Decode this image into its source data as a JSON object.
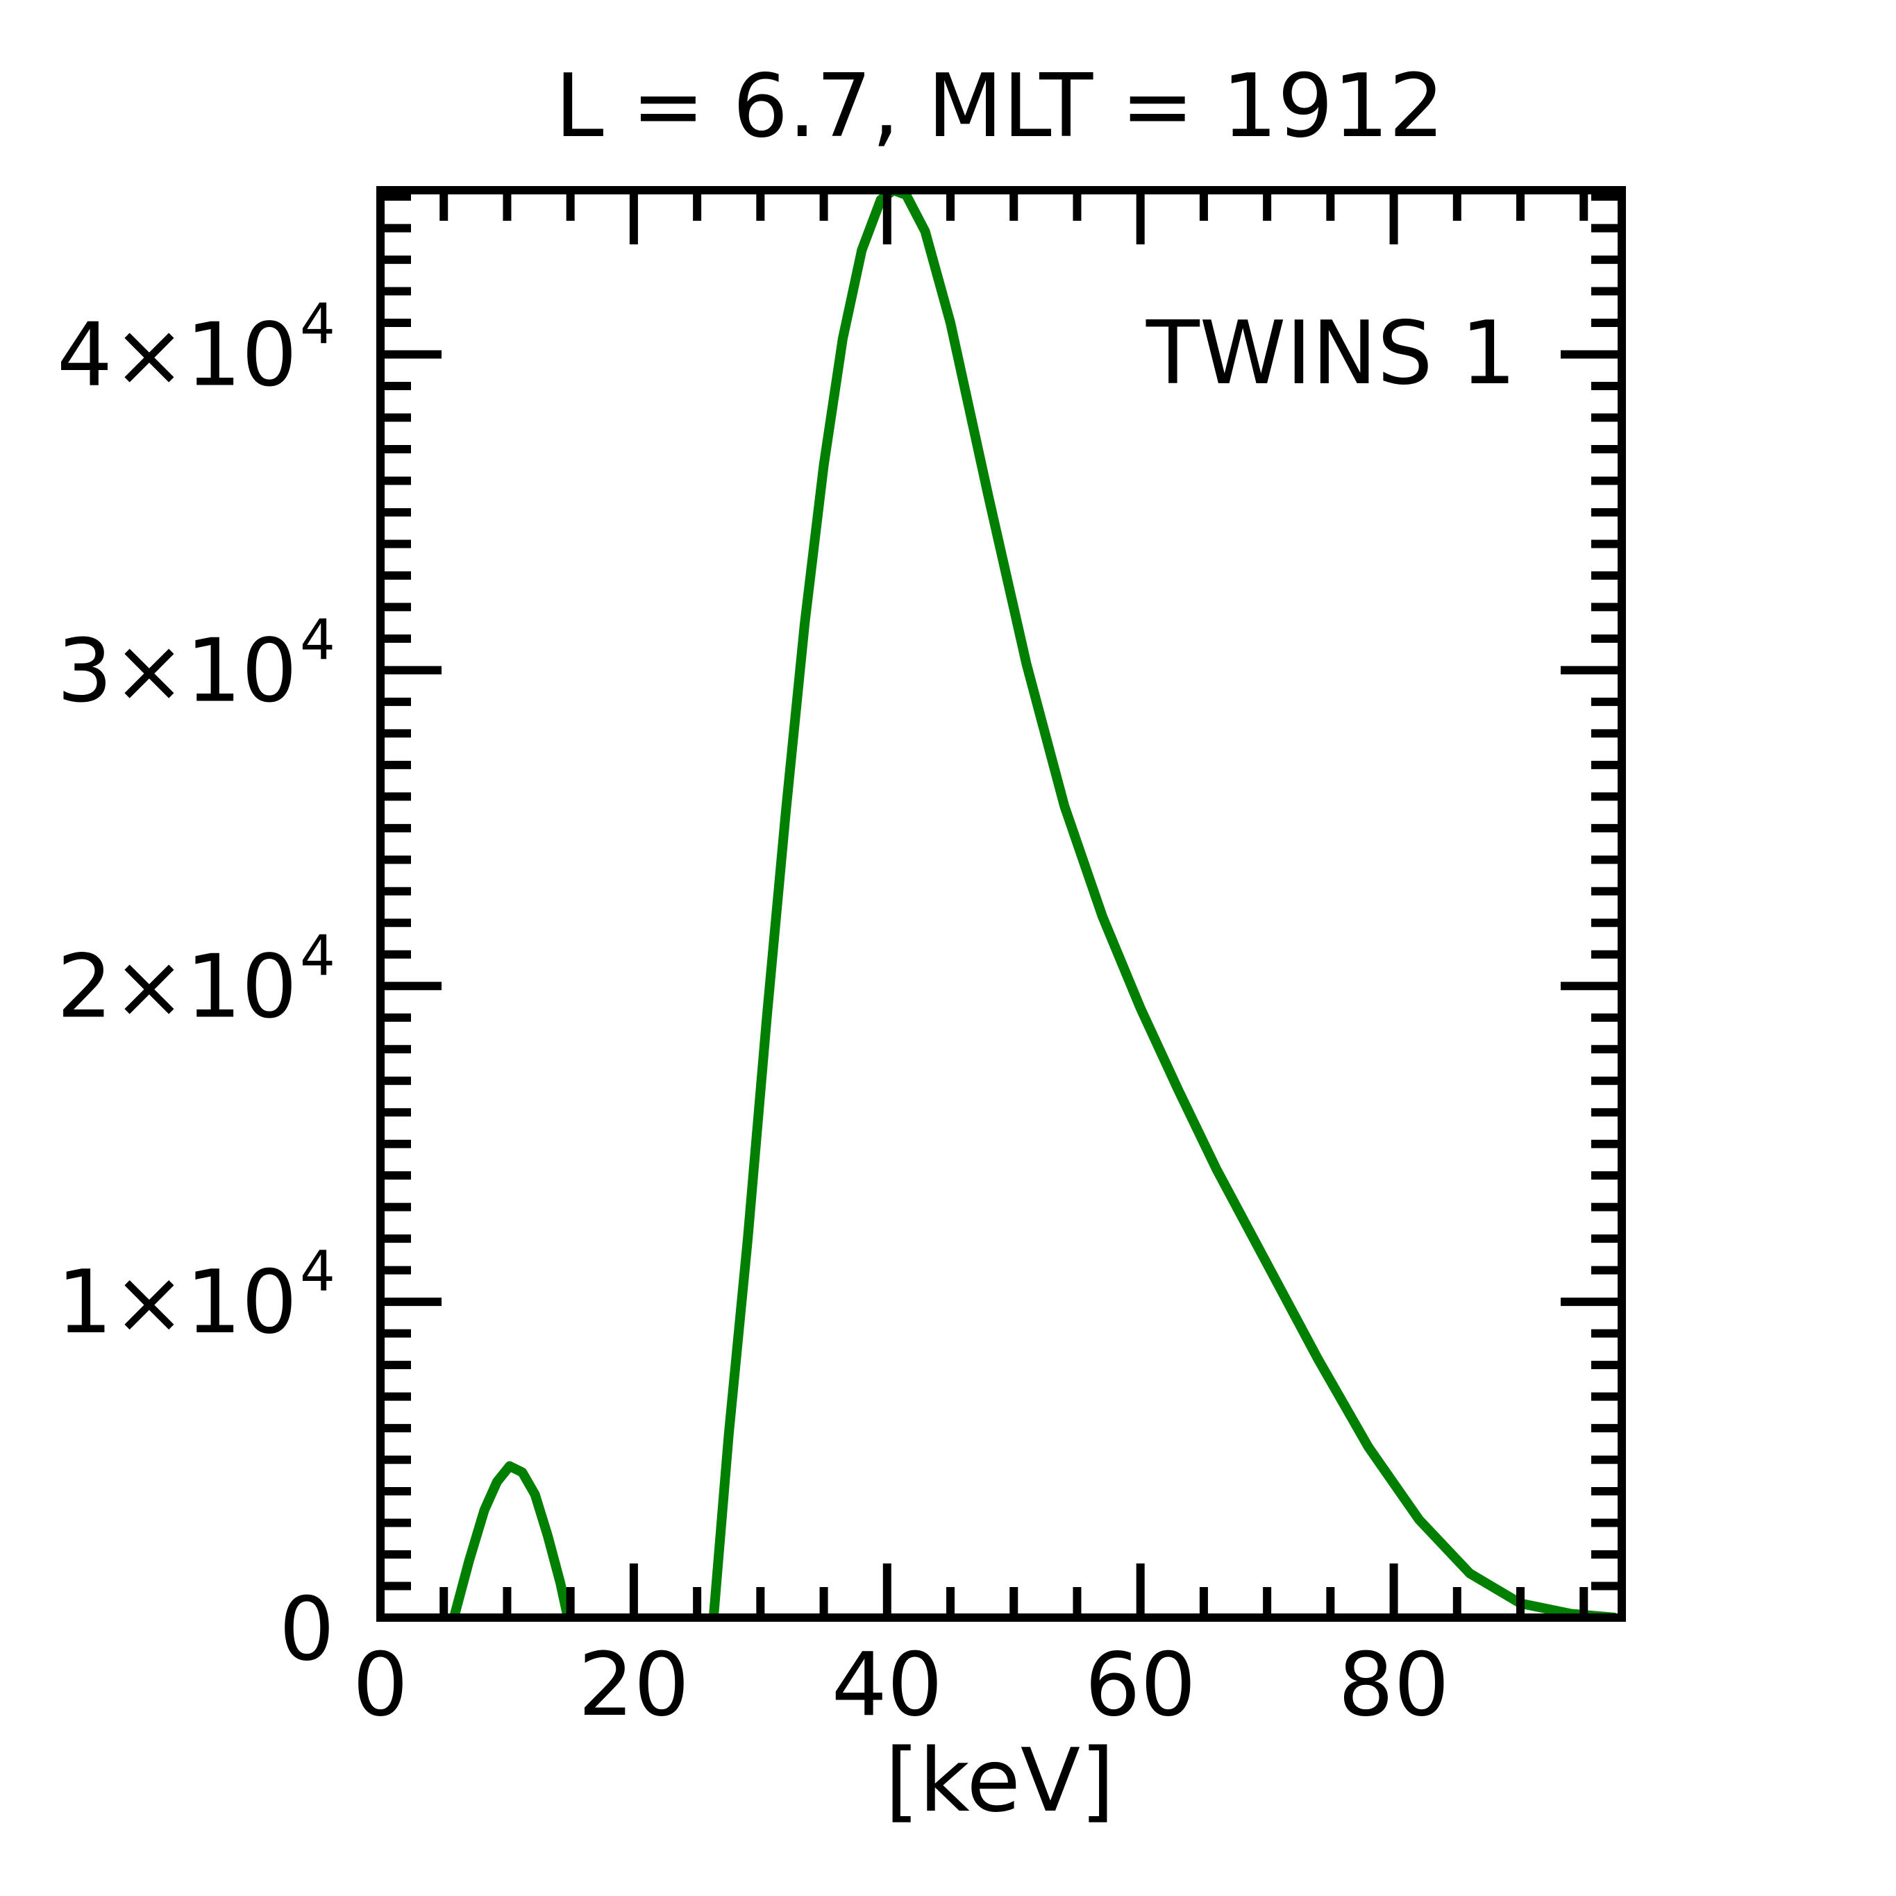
{
  "chart_data": {
    "type": "line",
    "title": "L =  6.7, MLT = 1912",
    "xlabel": "[keV]",
    "ylabel": "",
    "xlim": [
      0,
      98
    ],
    "ylim": [
      0,
      45200
    ],
    "x_ticks": [
      0,
      20,
      40,
      60,
      80
    ],
    "x_tick_labels": [
      "0",
      "20",
      "40",
      "60",
      "80"
    ],
    "x_minor_step": 5,
    "y_ticks": [
      0,
      10000,
      20000,
      30000,
      40000
    ],
    "y_tick_labels": [
      {
        "mantissa": "0",
        "exp": ""
      },
      {
        "mantissa": "1×10",
        "exp": "4"
      },
      {
        "mantissa": "2×10",
        "exp": "4"
      },
      {
        "mantissa": "3×10",
        "exp": "4"
      },
      {
        "mantissa": "4×10",
        "exp": "4"
      }
    ],
    "y_minor_step": 1000,
    "grid": false,
    "annotation": "TWINS 1",
    "annotation_color": "#007f00",
    "series": [
      {
        "color": "#007f00",
        "segments": [
          [
            [
              5.8,
              0
            ],
            [
              7,
              1800
            ],
            [
              8.2,
              3400
            ],
            [
              9.2,
              4300
            ],
            [
              10.2,
              4800
            ],
            [
              11.2,
              4600
            ],
            [
              12.2,
              3900
            ],
            [
              13.2,
              2600
            ],
            [
              14.2,
              1100
            ],
            [
              14.8,
              0
            ]
          ],
          [
            [
              26.3,
              0
            ],
            [
              27.5,
              5800
            ],
            [
              29,
              12000
            ],
            [
              30.5,
              19000
            ],
            [
              32,
              25500
            ],
            [
              33.5,
              31500
            ],
            [
              35,
              36500
            ],
            [
              36.5,
              40500
            ],
            [
              38,
              43300
            ],
            [
              39.5,
              44900
            ],
            [
              40.5,
              45200
            ],
            [
              41.5,
              45050
            ],
            [
              43,
              43900
            ],
            [
              45,
              41000
            ],
            [
              48,
              35500
            ],
            [
              51,
              30200
            ],
            [
              54,
              25700
            ],
            [
              57,
              22200
            ],
            [
              60,
              19300
            ],
            [
              63,
              16700
            ],
            [
              66,
              14200
            ],
            [
              70,
              11200
            ],
            [
              74,
              8200
            ],
            [
              78,
              5400
            ],
            [
              82,
              3100
            ],
            [
              86,
              1400
            ],
            [
              90,
              450
            ],
            [
              94,
              120
            ],
            [
              97.5,
              0
            ]
          ]
        ]
      }
    ]
  }
}
